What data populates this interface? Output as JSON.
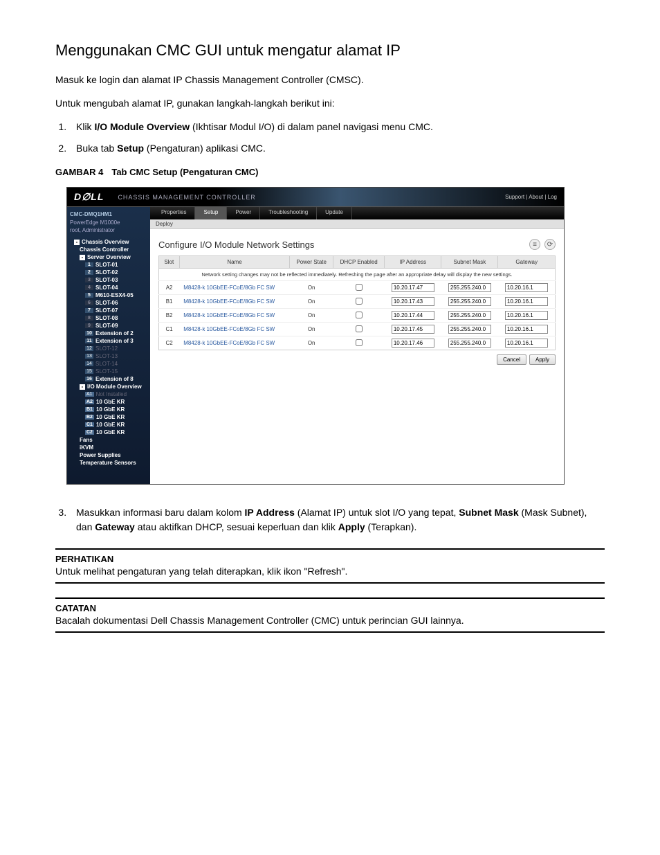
{
  "doc": {
    "title": "Menggunakan CMC GUI untuk mengatur alamat IP",
    "intro1": "Masuk ke login dan alamat IP Chassis Management Controller (CMSC).",
    "intro2": "Untuk mengubah alamat IP, gunakan langkah-langkah berikut ini:",
    "step1_pre": "Klik ",
    "step1_bold": "I/O Module Overview",
    "step1_post": " (Ikhtisar Modul I/O) di dalam panel navigasi menu CMC.",
    "step2_pre": "Buka tab ",
    "step2_bold": "Setup",
    "step2_post": " (Pengaturan) aplikasi CMC.",
    "figure_label": "GAMBAR 4",
    "figure_caption": "Tab CMC Setup (Pengaturan CMC)",
    "step3_pre": "Masukkan informasi baru dalam kolom ",
    "step3_b1": "IP Address",
    "step3_m1": " (Alamat IP) untuk slot I/O yang tepat, ",
    "step3_b2": "Subnet Mask",
    "step3_m2": " (Mask Subnet), dan ",
    "step3_b3": "Gateway",
    "step3_m3": " atau aktifkan DHCP, sesuai keperluan dan klik ",
    "step3_b4": "Apply",
    "step3_m4": " (Terapkan).",
    "note1_title": "PERHATIKAN",
    "note1_body": "Untuk melihat pengaturan yang telah diterapkan, klik ikon \"Refresh\".",
    "note2_title": "CATATAN",
    "note2_body": "Bacalah dokumentasi Dell Chassis Management Controller (CMC) untuk perincian GUI lainnya."
  },
  "cmc": {
    "logo": "D∅LL",
    "header_title": "CHASSIS MANAGEMENT CONTROLLER",
    "header_links": "Support  |  About  |  Log",
    "sidebar": {
      "host": "CMC-DMQ1HM1",
      "model": "PowerEdge M1000e",
      "user": "root, Administrator",
      "tree": [
        {
          "type": "node",
          "label": "Chassis Overview",
          "toggle": "-",
          "sel": true
        },
        {
          "type": "leaf",
          "label": "Chassis Controller",
          "indent": 1,
          "sel": true
        },
        {
          "type": "node",
          "label": "Server Overview",
          "toggle": "-",
          "indent": 1,
          "sel": true
        },
        {
          "type": "slot",
          "num": "1",
          "label": "SLOT-01",
          "indent": 2,
          "sel": true
        },
        {
          "type": "slot",
          "num": "2",
          "label": "SLOT-02",
          "indent": 2,
          "sel": true
        },
        {
          "type": "slot",
          "num": "3",
          "label": "SLOT-03",
          "indent": 2,
          "sel": true,
          "dimnum": true
        },
        {
          "type": "slot",
          "num": "4",
          "label": "SLOT-04",
          "indent": 2,
          "sel": true,
          "dimnum": true
        },
        {
          "type": "slot",
          "num": "5",
          "label": "M610-ESX4-05",
          "indent": 2,
          "sel": true
        },
        {
          "type": "slot",
          "num": "6",
          "label": "SLOT-06",
          "indent": 2,
          "sel": true,
          "dimnum": true
        },
        {
          "type": "slot",
          "num": "7",
          "label": "SLOT-07",
          "indent": 2,
          "sel": true
        },
        {
          "type": "slot",
          "num": "8",
          "label": "SLOT-08",
          "indent": 2,
          "sel": true,
          "dimnum": true
        },
        {
          "type": "slot",
          "num": "9",
          "label": "SLOT-09",
          "indent": 2,
          "sel": true,
          "dimnum": true
        },
        {
          "type": "slot",
          "num": "10",
          "label": "Extension of 2",
          "indent": 2,
          "sel": true
        },
        {
          "type": "slot",
          "num": "11",
          "label": "Extension of 3",
          "indent": 2,
          "sel": true
        },
        {
          "type": "slot",
          "num": "12",
          "label": "SLOT-12",
          "indent": 2,
          "dim": true
        },
        {
          "type": "slot",
          "num": "13",
          "label": "SLOT-13",
          "indent": 2,
          "dim": true
        },
        {
          "type": "slot",
          "num": "14",
          "label": "SLOT-14",
          "indent": 2,
          "dim": true
        },
        {
          "type": "slot",
          "num": "15",
          "label": "SLOT-15",
          "indent": 2,
          "dim": true
        },
        {
          "type": "slot",
          "num": "16",
          "label": "Extension of 8",
          "indent": 2,
          "sel": true
        },
        {
          "type": "node",
          "label": "I/O Module Overview",
          "toggle": "-",
          "indent": 1,
          "sel": true
        },
        {
          "type": "slot",
          "num": "A1",
          "label": "Not Installed",
          "indent": 2,
          "dim": true,
          "bright": true
        },
        {
          "type": "slot",
          "num": "A2",
          "label": "10 GbE KR",
          "indent": 2,
          "sel": true,
          "bright": true
        },
        {
          "type": "slot",
          "num": "B1",
          "label": "10 GbE KR",
          "indent": 2,
          "sel": true,
          "bright": true
        },
        {
          "type": "slot",
          "num": "B2",
          "label": "10 GbE KR",
          "indent": 2,
          "sel": true,
          "bright": true
        },
        {
          "type": "slot",
          "num": "C1",
          "label": "10 GbE KR",
          "indent": 2,
          "sel": true,
          "bright": true
        },
        {
          "type": "slot",
          "num": "C2",
          "label": "10 GbE KR",
          "indent": 2,
          "sel": true,
          "bright": true
        },
        {
          "type": "leaf",
          "label": "Fans",
          "indent": 1,
          "sel": true
        },
        {
          "type": "leaf",
          "label": "iKVM",
          "indent": 1,
          "sel": true
        },
        {
          "type": "leaf",
          "label": "Power Supplies",
          "indent": 1,
          "sel": true
        },
        {
          "type": "leaf",
          "label": "Temperature Sensors",
          "indent": 1,
          "sel": true
        }
      ]
    },
    "tabs": [
      "Properties",
      "Setup",
      "Power",
      "Troubleshooting",
      "Update"
    ],
    "active_tab": 1,
    "subtab": "Deploy",
    "panel_title": "Configure I/O Module Network Settings",
    "columns": [
      "Slot",
      "Name",
      "Power State",
      "DHCP Enabled",
      "IP Address",
      "Subnet Mask",
      "Gateway"
    ],
    "note_row": "Network setting changes may not be reflected immediately. Refreshing the page after an appropriate delay will display the new settings.",
    "rows": [
      {
        "slot": "A2",
        "name": "M8428-k 10GbEE-FCoE/8Gb FC SW",
        "power": "On",
        "dhcp": false,
        "ip": "10.20.17.47",
        "mask": "255.255.240.0",
        "gw": "10.20.16.1"
      },
      {
        "slot": "B1",
        "name": "M8428-k 10GbEE-FCoE/8Gb FC SW",
        "power": "On",
        "dhcp": false,
        "ip": "10.20.17.43",
        "mask": "255.255.240.0",
        "gw": "10.20.16.1"
      },
      {
        "slot": "B2",
        "name": "M8428-k 10GbEE-FCoE/8Gb FC SW",
        "power": "On",
        "dhcp": false,
        "ip": "10.20.17.44",
        "mask": "255.255.240.0",
        "gw": "10.20.16.1"
      },
      {
        "slot": "C1",
        "name": "M8428-k 10GbEE-FCoE/8Gb FC SW",
        "power": "On",
        "dhcp": false,
        "ip": "10.20.17.45",
        "mask": "255.255.240.0",
        "gw": "10.20.16.1"
      },
      {
        "slot": "C2",
        "name": "M8428-k 10GbEE-FCoE/8Gb FC SW",
        "power": "On",
        "dhcp": false,
        "ip": "10.20.17.46",
        "mask": "255.255.240.0",
        "gw": "10.20.16.1"
      }
    ],
    "buttons": {
      "cancel": "Cancel",
      "apply": "Apply"
    }
  },
  "style": {
    "sidebar_bg_top": "#1a2f4a",
    "sidebar_bg_bottom": "#0e1a2e",
    "link_color": "#2a5aa0",
    "table_header_bg": "#e8e8e8"
  }
}
